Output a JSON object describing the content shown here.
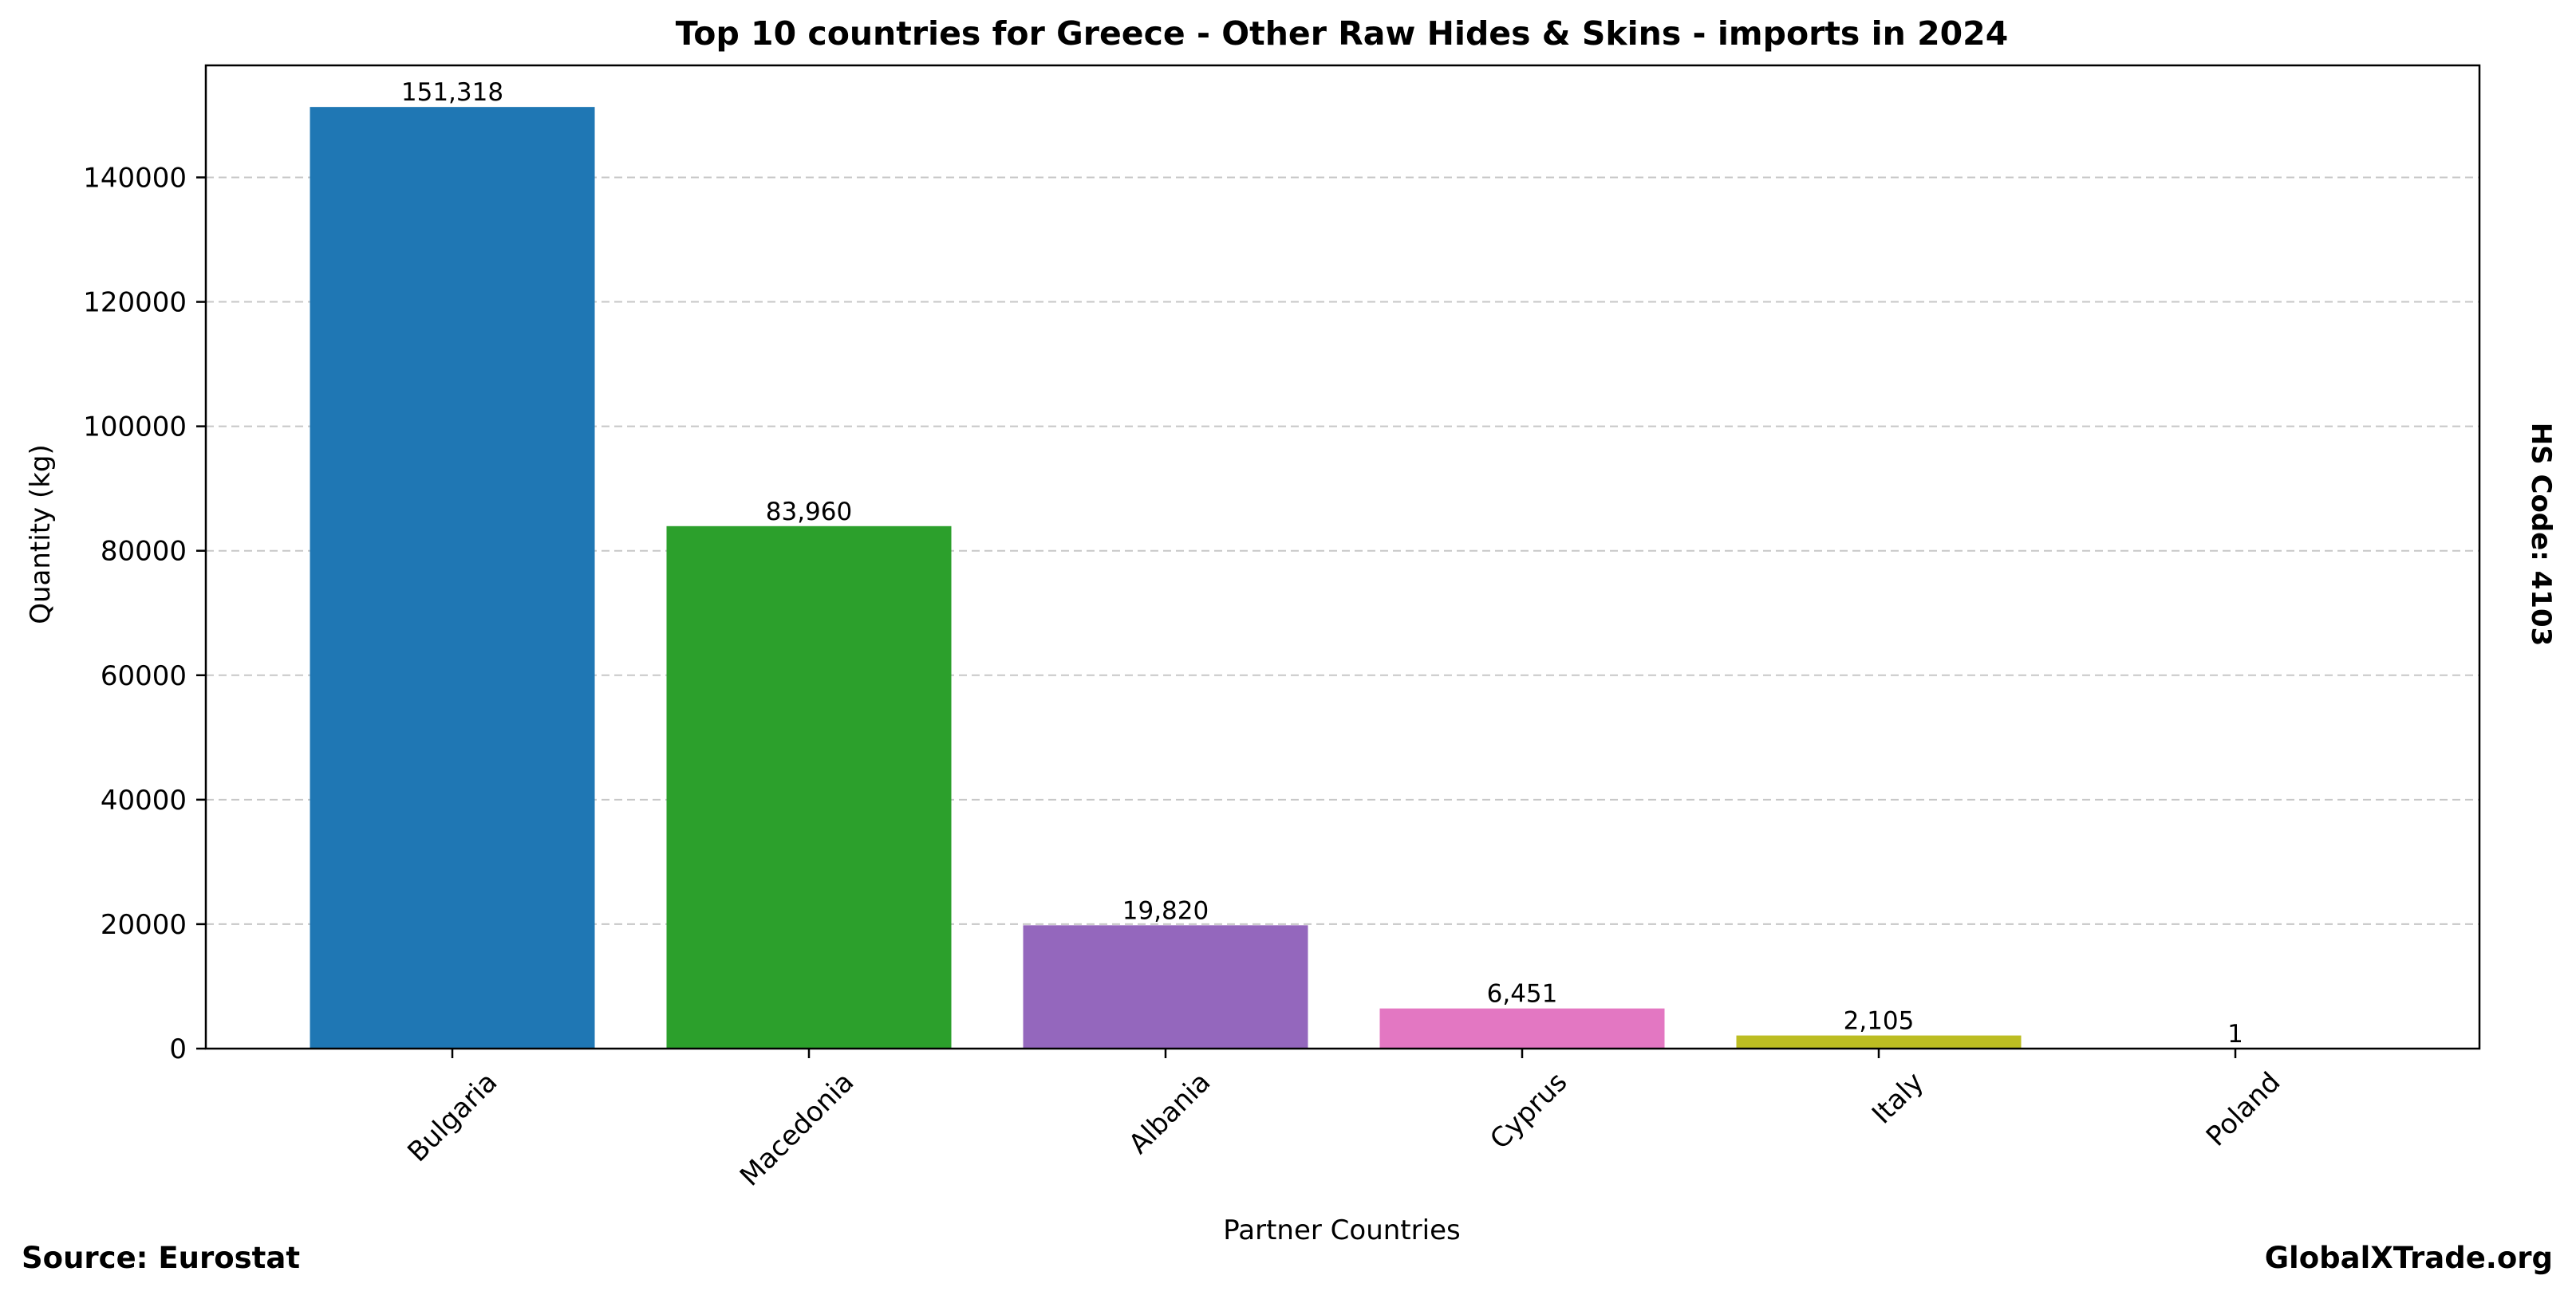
{
  "chart_data": {
    "type": "bar",
    "title": "Top 10 countries for Greece - Other Raw Hides & Skins - imports in 2024",
    "xlabel": "Partner Countries",
    "ylabel": "Quantity (kg)",
    "categories": [
      "Bulgaria",
      "Macedonia",
      "Albania",
      "Cyprus",
      "Italy",
      "Poland"
    ],
    "values": [
      151318,
      83960,
      19820,
      6451,
      2105,
      1
    ],
    "value_labels": [
      "151,318",
      "83,960",
      "19,820",
      "6,451",
      "2,105",
      "1"
    ],
    "colors": [
      "#1f77b4",
      "#2ca02c",
      "#9467bd",
      "#e377c2",
      "#bcbd22",
      "#17becf"
    ],
    "ylim": [
      0,
      158000
    ],
    "yticks": [
      0,
      20000,
      40000,
      60000,
      80000,
      100000,
      120000,
      140000
    ],
    "ytick_labels": [
      "0",
      "20000",
      "40000",
      "60000",
      "80000",
      "100000",
      "120000",
      "140000"
    ],
    "grid": "horizontal dashed",
    "legend": "none"
  },
  "side_label": "HS Code: 4103",
  "footer": {
    "source": "Source: Eurostat",
    "site": "GlobalXTrade.org"
  }
}
